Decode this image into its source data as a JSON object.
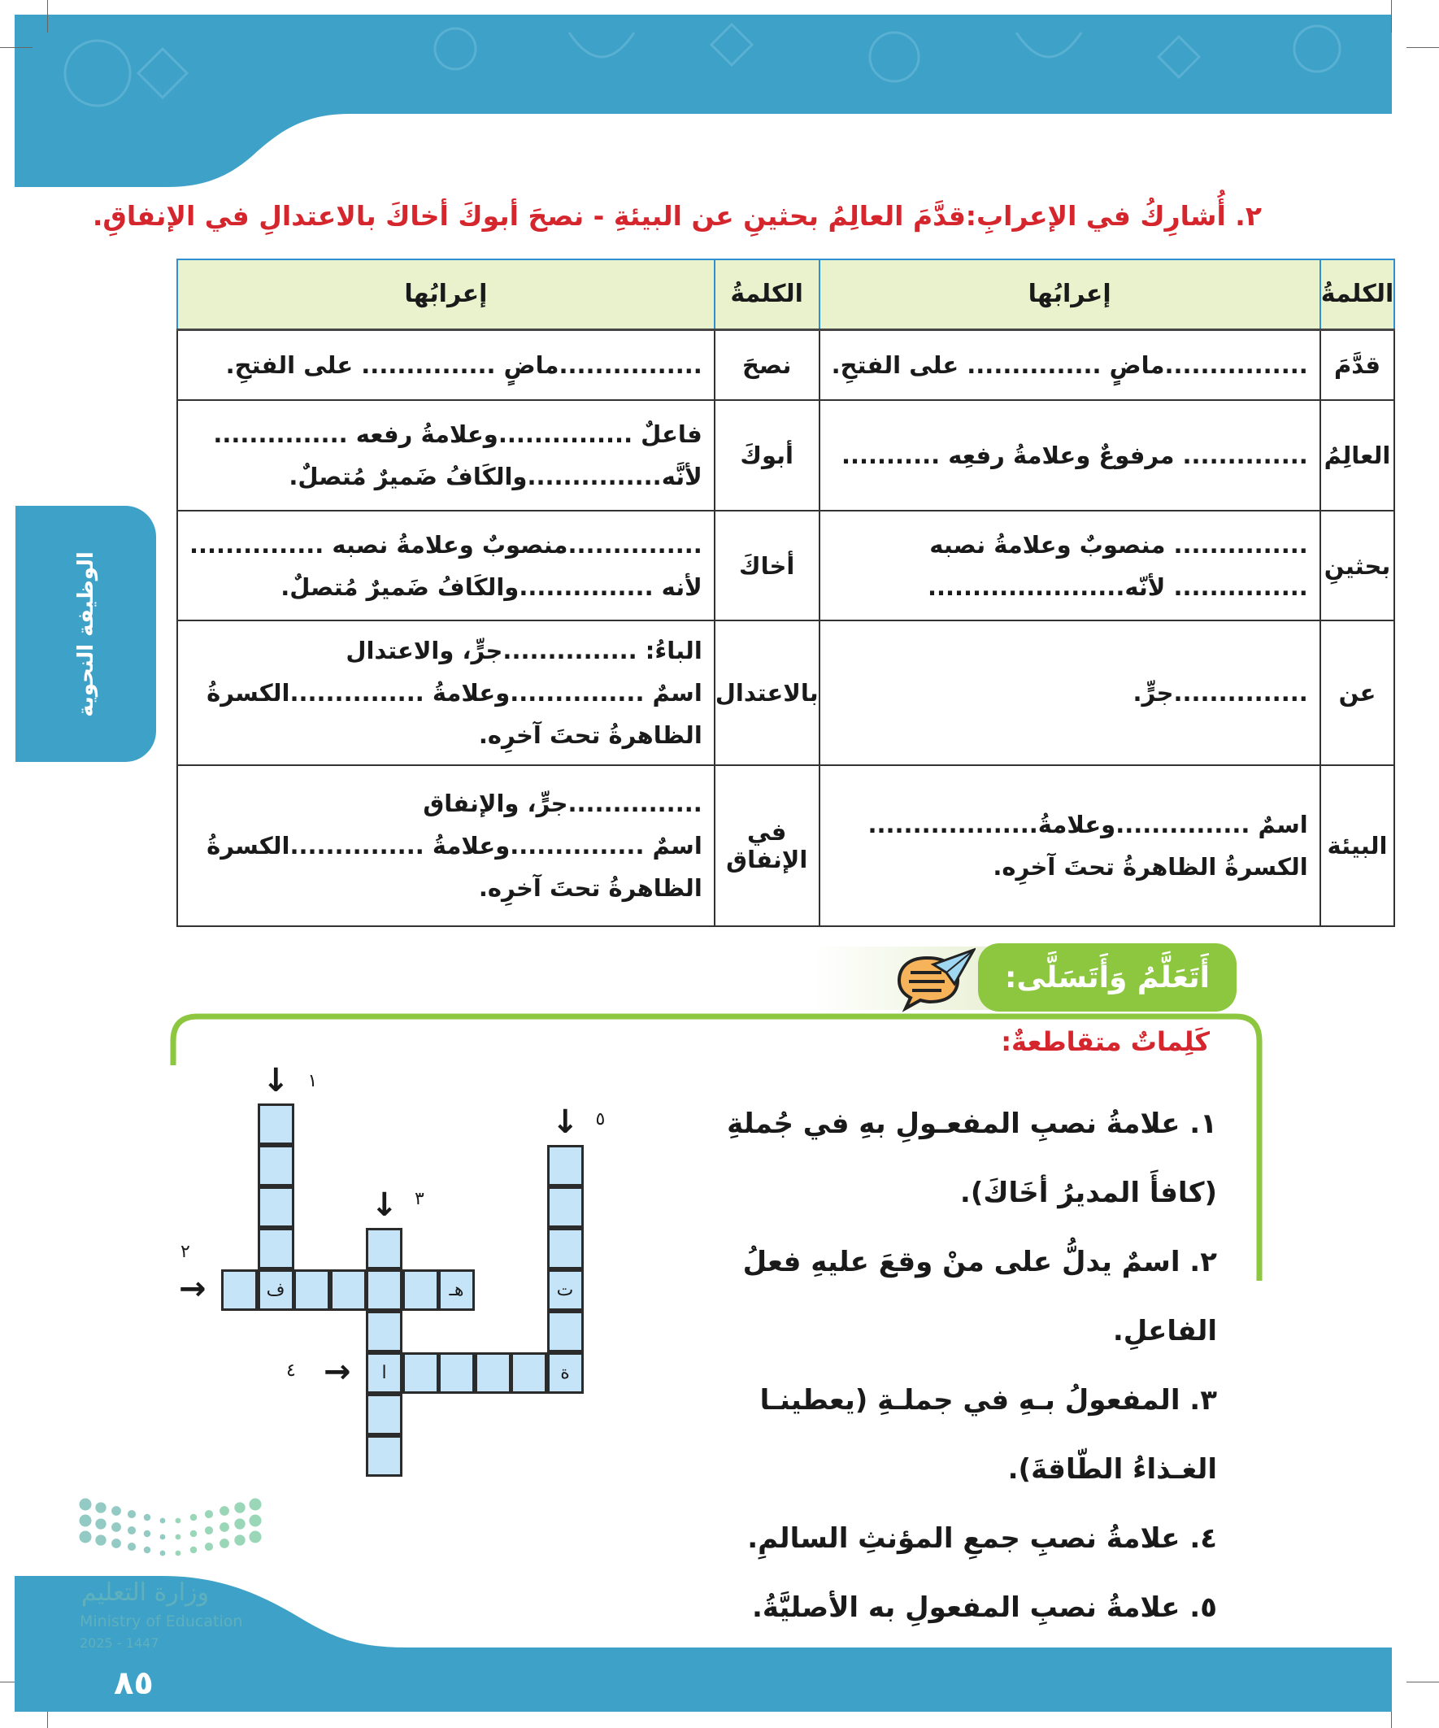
{
  "colors": {
    "header_blue": "#3ea1c8",
    "title_red": "#d5262e",
    "table_header_bg": "#e9f1cd",
    "section_green": "#8dc63f",
    "cell_blue": "#c6e4f7"
  },
  "title": "٢. أُشارِكُ في الإعرابِ:قدَّمَ العالِمُ بحثينِ عن البيئةِ - نصحَ أبوكَ أخاكَ بالاعتدالِ في الإنفاقِ.",
  "side_tab": "الوظيفة النحوية",
  "table": {
    "headers": [
      "الكلمةُ",
      "إعرابُها",
      "الكلمةُ",
      "إعرابُها"
    ],
    "rows": [
      {
        "word1": "قدَّمَ",
        "parse1": [
          "................ماضٍ ............... على الفتحِ."
        ],
        "word2": "نصحَ",
        "parse2": [
          "................ماضٍ ............... على الفتحِ."
        ]
      },
      {
        "word1": "العالِمُ",
        "parse1": [
          ".............. مرفوعٌ وعلامةُ رفعِه ..........."
        ],
        "word2": "أبوكَ",
        "parse2": [
          "فاعلٌ ...............وعلامةُ رفعه ...............",
          "لأنَّه...............والكَافُ ضَميرٌ مُتصلٌ."
        ]
      },
      {
        "word1": "بحثينِ",
        "parse1": [
          "............... منصوبٌ وعلامةُ نصبه",
          "............... لأنّه......................"
        ],
        "word2": "أخاكَ",
        "parse2": [
          "...............منصوبٌ وعلامةُ نصبه ...............",
          "لأنه ...............والكَافُ ضَميرٌ مُتصلٌ."
        ]
      },
      {
        "word1": "عن",
        "parse1": [
          "...............جرٍّ."
        ],
        "word2": "بالاعتدال",
        "parse2": [
          "الباءُ: ...............جرٍّ، والاعتدال",
          "اسمٌ ...............وعلامةُ ...............الكسرةُ",
          "الظاهرةُ تحتَ آخرِه."
        ]
      },
      {
        "word1": "البيئة",
        "parse1": [
          "اسمٌ ...............وعلامةُ...................",
          "الكسرةُ الظاهرةُ تحتَ آخرِه."
        ],
        "word2": "في الإنفاق",
        "parse2": [
          "...............جرٍّ، والإنفاق",
          "اسمٌ ...............وعلامةُ ...............الكسرةُ",
          "الظاهرةُ تحتَ آخرِه."
        ]
      }
    ]
  },
  "section": {
    "label": "أَتَعَلَّمُ وَأَتَسَلَّى:",
    "icon": "chat-bubble-paper-plane-icon",
    "subtitle": "كَلِماتٌ متقاطعةٌ:"
  },
  "clues": [
    "١. علامةُ نصبِ المفعـولِ بهِ في جُملةِ (كافأَ المديرُ أخَاكَ).",
    "٢. اسمٌ يدلُّ على منْ وقعَ عليهِ فعلُ الفاعلِ.",
    "٣. المفعولُ بـهِ في جملـةِ (يعطينـا الغـذاءُ الطّاقةَ).",
    "٤. علامةُ نصبِ جمعِ المؤنثِ السالمِ.",
    "٥. علامةُ نصبِ المفعولِ به الأصليَّةُ."
  ],
  "crossword": {
    "clue_numbers": [
      "١",
      "٢",
      "٣",
      "٤",
      "٥"
    ],
    "given_letters": [
      "ف",
      "هـ",
      "ت",
      "ة",
      "ا"
    ]
  },
  "footer": {
    "page_number": "٨٥",
    "logo_arabic": "وزارة التعليم",
    "logo_english": "Ministry of Education",
    "logo_year": "2025 - 1447"
  }
}
